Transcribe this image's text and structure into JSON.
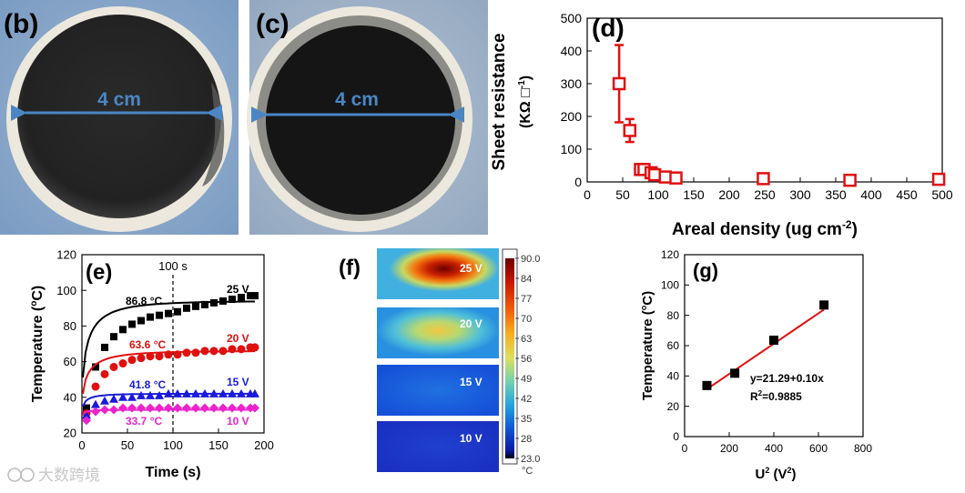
{
  "panels": {
    "b": {
      "label": "(b)",
      "scale_text": "4 cm"
    },
    "c": {
      "label": "(c)",
      "scale_text": "4 cm"
    },
    "f": {
      "label": "(f)",
      "colorbar_unit": "°C"
    }
  },
  "watermark": {
    "text": "大数跨境"
  },
  "colors": {
    "red": "#e01010",
    "black": "#000000",
    "blue": "#1a1adc",
    "magenta": "#ee22cc",
    "arrow": "#4a86c4"
  },
  "chart_data": [
    {
      "id": "d",
      "panel_label": "(d)",
      "type": "scatter",
      "xlabel": "Areal density (ug cm",
      "xlabel_sup": "-2",
      "xlabel_tail": ")",
      "ylabel": "Sheet resistance",
      "ylabel2": "(KΩ □",
      "ylabel2_sup": "-1",
      "ylabel2_tail": ")",
      "xlim": [
        0,
        500
      ],
      "ylim": [
        0,
        500
      ],
      "xticks": [
        0,
        50,
        100,
        150,
        200,
        250,
        300,
        350,
        400,
        450,
        500
      ],
      "yticks": [
        0,
        100,
        200,
        300,
        400,
        500
      ],
      "points": [
        {
          "x": 45,
          "y": 300,
          "err": 118
        },
        {
          "x": 60,
          "y": 157,
          "err": 35
        },
        {
          "x": 75,
          "y": 38,
          "err": 0
        },
        {
          "x": 80,
          "y": 38,
          "err": 0
        },
        {
          "x": 90,
          "y": 28,
          "err": 0
        },
        {
          "x": 95,
          "y": 22,
          "err": 0
        },
        {
          "x": 110,
          "y": 15,
          "err": 0
        },
        {
          "x": 125,
          "y": 12,
          "err": 0
        },
        {
          "x": 248,
          "y": 10,
          "err": 0
        },
        {
          "x": 370,
          "y": 5,
          "err": 0
        },
        {
          "x": 495,
          "y": 8,
          "err": 0
        }
      ]
    },
    {
      "id": "e",
      "panel_label": "(e)",
      "type": "scatter",
      "xlabel": "Time (s)",
      "ylabel": "Temperature (",
      "ylabel_sup": "o",
      "ylabel_tail": "C)",
      "xlim": [
        0,
        200
      ],
      "ylim": [
        20,
        120
      ],
      "xticks": [
        0,
        50,
        100,
        150,
        200
      ],
      "yticks": [
        20,
        40,
        60,
        80,
        100,
        120
      ],
      "vline": {
        "x": 100,
        "label": "100 s"
      },
      "series": [
        {
          "name": "25 V",
          "marker": "square",
          "color": "#000000",
          "temp_label": "86.8 °C",
          "A": 87,
          "k": 0.045,
          "slope": 0.1,
          "y0": 29,
          "fit": {
            "A": 64,
            "k": 0.25,
            "B": 30
          },
          "x": [
            5,
            15,
            25,
            35,
            45,
            55,
            65,
            75,
            85,
            95,
            105,
            115,
            125,
            135,
            145,
            155,
            165,
            175,
            185,
            190
          ],
          "y": [
            34,
            57,
            68,
            74,
            78,
            81,
            83,
            85,
            86,
            87,
            88,
            90,
            91,
            92,
            93,
            94,
            95,
            96,
            97,
            97
          ]
        },
        {
          "name": "20 V",
          "marker": "circle",
          "color": "#e01010",
          "temp_label": "63.6 °C",
          "fit": {
            "A": 36,
            "k": 0.25,
            "B": 30
          },
          "x": [
            5,
            15,
            25,
            35,
            45,
            55,
            65,
            75,
            85,
            95,
            105,
            115,
            125,
            135,
            145,
            155,
            165,
            175,
            185,
            190
          ],
          "y": [
            31,
            46,
            53,
            57,
            59,
            61,
            62,
            63,
            63,
            64,
            64,
            65,
            65,
            66,
            66,
            66,
            67,
            67,
            68,
            68
          ]
        },
        {
          "name": "15 V",
          "marker": "triangle",
          "color": "#1a1adc",
          "temp_label": "41.8 °C",
          "fit": {
            "A": 12,
            "k": 0.33,
            "B": 30
          },
          "x": [
            5,
            15,
            25,
            35,
            45,
            55,
            65,
            75,
            85,
            95,
            105,
            115,
            125,
            135,
            145,
            155,
            165,
            175,
            185,
            190
          ],
          "y": [
            30,
            36,
            38,
            39,
            40,
            40,
            41,
            41,
            41,
            42,
            42,
            42,
            42,
            42,
            42,
            42,
            42,
            42,
            42,
            42
          ]
        },
        {
          "name": "10 V",
          "marker": "diamond",
          "color": "#ee22cc",
          "temp_label": "33.7 °C",
          "fit": {
            "A": 5,
            "k": 0.42,
            "B": 28
          },
          "x": [
            5,
            15,
            25,
            35,
            45,
            55,
            65,
            75,
            85,
            95,
            105,
            115,
            125,
            135,
            145,
            155,
            165,
            175,
            185,
            190
          ],
          "y": [
            27,
            32,
            33,
            33,
            34,
            34,
            34,
            34,
            34,
            34,
            34,
            34,
            34,
            34,
            34,
            34,
            34,
            34,
            34,
            34
          ]
        }
      ]
    },
    {
      "id": "f",
      "panel_label": "(f)",
      "type": "heatmap",
      "colorbar_ticks": [
        "90.0",
        "84",
        "77",
        "70",
        "63",
        "56",
        "49",
        "42",
        "35",
        "28",
        "23.0"
      ],
      "colorbar_range": [
        23.0,
        90.0
      ],
      "images": [
        {
          "label": "25 V",
          "peak": 86.8
        },
        {
          "label": "20 V",
          "peak": 63.6
        },
        {
          "label": "15 V",
          "peak": 41.8
        },
        {
          "label": "10 V",
          "peak": 33.7
        }
      ]
    },
    {
      "id": "g",
      "panel_label": "(g)",
      "type": "scatter",
      "xlabel": "U",
      "xlabel_sup": "2",
      "xlabel_mid": " (V",
      "xlabel_sup2": "2",
      "xlabel_tail": ")",
      "ylabel": "Temperature (",
      "ylabel_sup": "o",
      "ylabel_tail": "C)",
      "xlim": [
        0,
        800
      ],
      "ylim": [
        0,
        120
      ],
      "xticks": [
        0,
        200,
        400,
        600,
        800
      ],
      "yticks": [
        0,
        20,
        40,
        60,
        80,
        100,
        120
      ],
      "points": [
        {
          "x": 100,
          "y": 33.7
        },
        {
          "x": 225,
          "y": 41.8
        },
        {
          "x": 400,
          "y": 63.6
        },
        {
          "x": 625,
          "y": 86.8
        }
      ],
      "fit": {
        "intercept": 21.29,
        "slope": 0.1
      },
      "equation": "y=21.29+0.10x",
      "r2_prefix": "R",
      "r2_sup": "2",
      "r2_suffix": "=0.9885"
    }
  ]
}
